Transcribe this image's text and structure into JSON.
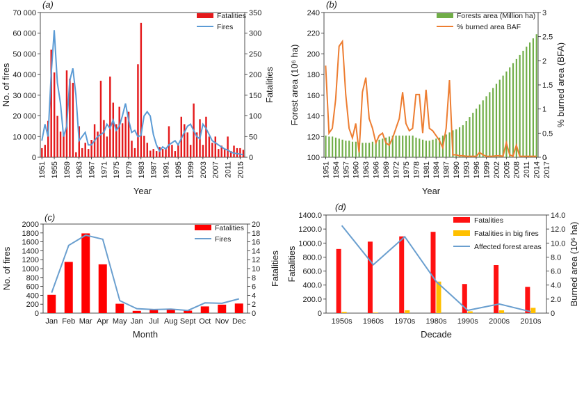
{
  "chart_data": [
    {
      "type": "bar",
      "panel_label": "(a)",
      "xlabel": "Year",
      "ylabel_left": "No. of fires",
      "ylabel_right": "Fatalities",
      "ylim_left": [
        0,
        70000
      ],
      "ylim_right": [
        0,
        350
      ],
      "yticks_left": [
        "0",
        "10 000",
        "20 000",
        "30 000",
        "40 000",
        "50 000",
        "60 000",
        "70 000"
      ],
      "yticks_right": [
        "0",
        "50",
        "100",
        "150",
        "200",
        "250",
        "300",
        "350"
      ],
      "x_start": 1951,
      "xtick_labels": [
        "1951",
        "1955",
        "1959",
        "1963",
        "1967",
        "1971",
        "1975",
        "1979",
        "1983",
        "1987",
        "1991",
        "1995",
        "1999",
        "2003",
        "2007",
        "2011",
        "2015"
      ],
      "legend": [
        "Fatalities",
        "Fires"
      ],
      "legend_position": "top-right",
      "series": [
        {
          "name": "Fatalities",
          "axis": "right",
          "color": "#e41a1c",
          "values": [
            22,
            30,
            88,
            260,
            205,
            100,
            62,
            55,
            210,
            190,
            180,
            12,
            75,
            22,
            35,
            20,
            42,
            80,
            62,
            185,
            90,
            50,
            195,
            132,
            80,
            122,
            82,
            98,
            110,
            40,
            22,
            225,
            325,
            52,
            35,
            16,
            20,
            15,
            25,
            20,
            22,
            75,
            30,
            15,
            30,
            98,
            80,
            60,
            30,
            130,
            60,
            92,
            30,
            98,
            50,
            35,
            50,
            20,
            28,
            20,
            50,
            15,
            28,
            22,
            22,
            18
          ]
        },
        {
          "name": "Fires",
          "axis": "left",
          "color": "#5b9bd5",
          "values": [
            8000,
            16000,
            10000,
            40000,
            61500,
            36000,
            26000,
            10000,
            15000,
            37000,
            43000,
            30000,
            8000,
            10000,
            12000,
            6000,
            6000,
            8000,
            10000,
            11000,
            12000,
            16000,
            14000,
            18000,
            13000,
            15000,
            20000,
            26000,
            18000,
            12000,
            13000,
            10000,
            10500,
            20000,
            22000,
            20000,
            11000,
            6000,
            3000,
            5000,
            4000,
            6000,
            7000,
            8000,
            6000,
            9000,
            12000,
            15000,
            16000,
            13000,
            10000,
            9000,
            16000,
            14000,
            11000,
            8000,
            7000,
            6000,
            5000,
            4000,
            3500,
            2500,
            2000,
            1800,
            1500,
            1200
          ]
        }
      ]
    },
    {
      "type": "bar",
      "panel_label": "(b)",
      "xlabel": "Year",
      "ylabel_left": "Forest area (10⁶ ha)",
      "ylabel_right": "% burned area (BFA)",
      "ylim_left": [
        100,
        240
      ],
      "ylim_right": [
        0,
        3
      ],
      "yticks_left": [
        "100",
        "120",
        "140",
        "160",
        "180",
        "200",
        "220",
        "240"
      ],
      "yticks_right": [
        "0",
        "0.5",
        "1",
        "1.5",
        "2",
        "2.5",
        "3"
      ],
      "x_start": 1951,
      "xtick_labels": [
        "1951",
        "1954",
        "1957",
        "1960",
        "1963",
        "1966",
        "1969",
        "1972",
        "1975",
        "1978",
        "1981",
        "1984",
        "1987",
        "1990",
        "1993",
        "1996",
        "1999",
        "2002",
        "2005",
        "2008",
        "2011",
        "2014",
        "2017"
      ],
      "legend": [
        "Forests area (Million ha)",
        "% burned area BAF"
      ],
      "legend_position": "top-left",
      "series": [
        {
          "name": "Forests area (Million ha)",
          "axis": "left",
          "color": "#70ad47",
          "values": [
            121,
            120,
            120,
            119,
            118,
            117,
            116,
            116,
            115,
            115,
            114,
            114,
            114,
            114,
            115,
            116,
            117,
            118,
            119,
            120,
            121,
            121,
            121,
            121,
            121,
            121,
            121,
            119,
            118,
            117,
            116,
            116,
            117,
            118,
            119,
            121,
            122,
            124,
            126,
            127,
            129,
            131,
            135,
            139,
            143,
            147,
            151,
            155,
            159,
            163,
            167,
            171,
            175,
            179,
            183,
            187,
            191,
            195,
            199,
            203,
            207,
            211,
            215,
            219
          ]
        },
        {
          "name": "% burned area BAF",
          "axis": "right",
          "color": "#ed7d31",
          "values": [
            1.9,
            0.5,
            0.6,
            1.2,
            2.3,
            2.4,
            1.3,
            0.6,
            0.4,
            0.7,
            0.1,
            1.35,
            1.65,
            0.8,
            0.6,
            0.3,
            0.45,
            0.5,
            0.3,
            0.25,
            0.4,
            0.6,
            0.8,
            1.35,
            0.7,
            0.55,
            0.6,
            1.3,
            1.3,
            0.5,
            1.4,
            0.6,
            0.55,
            0.45,
            0.35,
            0.2,
            0.6,
            1.6,
            0.05,
            0.05,
            0.03,
            0.03,
            0.02,
            0.02,
            0.02,
            0.02,
            0.1,
            0.05,
            0.02,
            0.02,
            0.02,
            0.03,
            0.03,
            0.02,
            0.3,
            0.05,
            0.02,
            0.25,
            0.02,
            0.02,
            0.02,
            0.02,
            0.02,
            0.02
          ]
        }
      ]
    },
    {
      "type": "bar",
      "panel_label": "(c)",
      "xlabel": "Month",
      "ylabel_left": "No. of fires",
      "ylabel_right": "Fatalities",
      "ylim_left": [
        0,
        2000
      ],
      "ylim_right": [
        0,
        20
      ],
      "yticks_left": [
        "0",
        "200",
        "400",
        "600",
        "800",
        "1000",
        "1200",
        "1400",
        "1600",
        "1800",
        "2000"
      ],
      "yticks_right": [
        "0",
        "2",
        "4",
        "6",
        "8",
        "10",
        "12",
        "14",
        "16",
        "18",
        "20"
      ],
      "categories": [
        "Jan",
        "Feb",
        "Mar",
        "Apr",
        "May",
        "Jan",
        "Jul",
        "Aug",
        "Sept",
        "Oct",
        "Nov",
        "Dec"
      ],
      "legend": [
        "Fatalities",
        "Fires"
      ],
      "legend_position": "top-right",
      "series": [
        {
          "name": "Fatalities",
          "axis": "left",
          "color": "#ff0000",
          "values": [
            410,
            1150,
            1790,
            1095,
            210,
            50,
            75,
            80,
            55,
            150,
            190,
            215
          ]
        },
        {
          "name": "Fires",
          "axis": "right",
          "color": "#6a9fcf",
          "values": [
            4.6,
            15.2,
            17.5,
            16.6,
            2.8,
            1.0,
            0.8,
            0.9,
            0.6,
            2.3,
            2.2,
            3.2
          ]
        }
      ]
    },
    {
      "type": "bar",
      "panel_label": "(d)",
      "xlabel": "Decade",
      "ylabel_left": "Fatalities",
      "ylabel_right": "Burned area (10⁶ ha)",
      "ylim_left": [
        0,
        1400
      ],
      "ylim_right": [
        0,
        14
      ],
      "yticks_left": [
        "0",
        "200.0",
        "400.0",
        "600.0",
        "800.0",
        "1000.0",
        "1200.0",
        "1400.0"
      ],
      "yticks_right": [
        "0",
        "2.0",
        "4.0",
        "6.0",
        "8.0",
        "10.0",
        "12.0",
        "14.0"
      ],
      "categories": [
        "1950s",
        "1960s",
        "1970s",
        "1980s",
        "1990s",
        "2000s",
        "2010s"
      ],
      "legend": [
        "Fatalities",
        "Fatalities in big fires",
        "Affected forest areas"
      ],
      "legend_position": "top-right",
      "series": [
        {
          "name": "Fatalities",
          "axis": "left",
          "color": "#ff1111",
          "values": [
            915,
            1020,
            1095,
            1160,
            415,
            685,
            375
          ]
        },
        {
          "name": "Fatalities in big fires",
          "axis": "left",
          "color": "#ffc000",
          "values": [
            18,
            8,
            40,
            450,
            25,
            40,
            75
          ]
        },
        {
          "name": "Affected forest areas",
          "axis": "right",
          "color": "#6a9fcf",
          "values": [
            12.5,
            6.9,
            10.9,
            4.5,
            0.4,
            1.3,
            0.2
          ]
        }
      ]
    }
  ]
}
